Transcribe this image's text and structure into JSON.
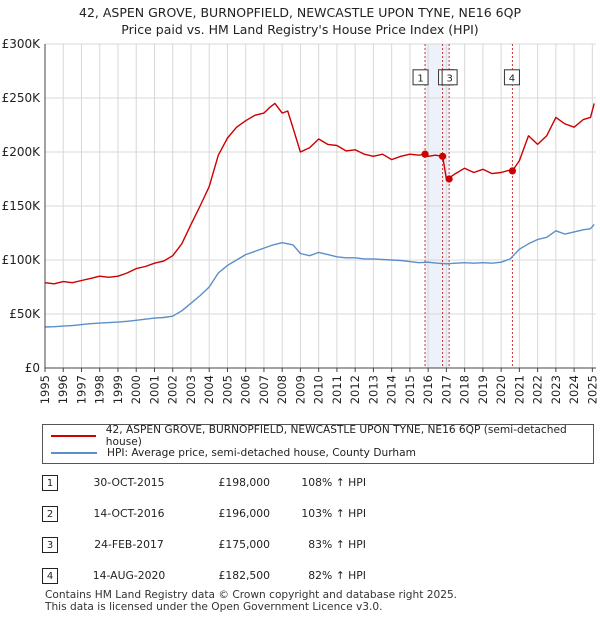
{
  "header": {
    "title_line1": "42, ASPEN GROVE, BURNOPFIELD, NEWCASTLE UPON TYNE, NE16 6QP",
    "title_line2": "Price paid vs. HM Land Registry's House Price Index (HPI)"
  },
  "colors": {
    "property": "#cc0000",
    "hpi": "#5b8fc9",
    "marker_line": "#cc0000",
    "shade": "#dde6f5"
  },
  "chart_data": {
    "type": "line",
    "xlim": [
      1995.0,
      2025.2
    ],
    "ylim": [
      0,
      300000
    ],
    "x_ticks": [
      "1995",
      "1996",
      "1997",
      "1998",
      "1999",
      "2000",
      "2001",
      "2002",
      "2003",
      "2004",
      "2005",
      "2006",
      "2007",
      "2008",
      "2009",
      "2010",
      "2011",
      "2012",
      "2013",
      "2014",
      "2015",
      "2016",
      "2017",
      "2018",
      "2019",
      "2020",
      "2021",
      "2022",
      "2023",
      "2024",
      "2025"
    ],
    "y_ticks": [
      {
        "value": 0,
        "label": "£0"
      },
      {
        "value": 50000,
        "label": "£50K"
      },
      {
        "value": 100000,
        "label": "£100K"
      },
      {
        "value": 150000,
        "label": "£150K"
      },
      {
        "value": 200000,
        "label": "£200K"
      },
      {
        "value": 250000,
        "label": "£250K"
      },
      {
        "value": 300000,
        "label": "£300K"
      }
    ],
    "series": [
      {
        "name": "42, ASPEN GROVE, BURNOPFIELD, NEWCASTLE UPON TYNE, NE16 6QP (semi-detached house)",
        "color": "#cc0000",
        "x": [
          1995.0,
          1995.5,
          1996.0,
          1996.5,
          1997.0,
          1997.5,
          1998.0,
          1998.5,
          1999.0,
          1999.5,
          2000.0,
          2000.5,
          2001.0,
          2001.5,
          2002.0,
          2002.5,
          2003.0,
          2003.5,
          2004.0,
          2004.5,
          2005.0,
          2005.5,
          2006.0,
          2006.5,
          2007.0,
          2007.3,
          2007.6,
          2008.0,
          2008.3,
          2008.6,
          2009.0,
          2009.5,
          2010.0,
          2010.5,
          2011.0,
          2011.5,
          2012.0,
          2012.5,
          2013.0,
          2013.5,
          2014.0,
          2014.5,
          2015.0,
          2015.5,
          2015.83,
          2016.0,
          2016.4,
          2016.79,
          2017.0,
          2017.15,
          2017.5,
          2018.0,
          2018.5,
          2019.0,
          2019.5,
          2020.0,
          2020.4,
          2020.62,
          2021.0,
          2021.5,
          2022.0,
          2022.5,
          2023.0,
          2023.5,
          2024.0,
          2024.5,
          2024.9,
          2025.1
        ],
        "y": [
          79000,
          78000,
          80000,
          79000,
          81000,
          83000,
          85000,
          84000,
          85000,
          88000,
          92000,
          94000,
          97000,
          99000,
          104000,
          115000,
          133000,
          150000,
          168000,
          197000,
          213000,
          223000,
          229000,
          234000,
          236000,
          241000,
          245000,
          236000,
          238000,
          222000,
          200000,
          204000,
          212000,
          207000,
          206000,
          201000,
          202000,
          198000,
          196000,
          198000,
          193000,
          196000,
          198000,
          197000,
          198000,
          196000,
          197000,
          196000,
          175000,
          176000,
          180000,
          185000,
          181000,
          184000,
          180000,
          181000,
          183000,
          182500,
          192000,
          215000,
          207000,
          215000,
          232000,
          226000,
          223000,
          230000,
          232000,
          245000
        ]
      },
      {
        "name": "HPI: Average price, semi-detached house, County Durham",
        "color": "#5b8fc9",
        "x": [
          1995.0,
          1995.5,
          1996.0,
          1996.5,
          1997.0,
          1997.5,
          1998.0,
          1998.5,
          1999.0,
          1999.5,
          2000.0,
          2000.5,
          2001.0,
          2001.5,
          2002.0,
          2002.5,
          2003.0,
          2003.5,
          2004.0,
          2004.5,
          2005.0,
          2005.5,
          2006.0,
          2006.5,
          2007.0,
          2007.5,
          2008.0,
          2008.3,
          2008.6,
          2009.0,
          2009.5,
          2010.0,
          2010.5,
          2011.0,
          2011.5,
          2012.0,
          2012.5,
          2013.0,
          2013.5,
          2014.0,
          2014.5,
          2015.0,
          2015.5,
          2016.0,
          2016.5,
          2017.0,
          2017.5,
          2018.0,
          2018.5,
          2019.0,
          2019.5,
          2020.0,
          2020.5,
          2021.0,
          2021.5,
          2022.0,
          2022.5,
          2023.0,
          2023.5,
          2024.0,
          2024.5,
          2024.9,
          2025.1
        ],
        "y": [
          38000,
          38200,
          38800,
          39300,
          40200,
          41000,
          41600,
          42000,
          42500,
          43200,
          44200,
          45200,
          46200,
          46800,
          48000,
          53000,
          60000,
          67000,
          75000,
          88000,
          95000,
          100000,
          105000,
          108000,
          111000,
          114000,
          116000,
          115000,
          114000,
          106000,
          104000,
          107000,
          105000,
          103000,
          102000,
          102000,
          101000,
          101000,
          100500,
          100000,
          99500,
          98500,
          97500,
          98000,
          97000,
          96500,
          97000,
          97500,
          97000,
          97500,
          97000,
          98000,
          101000,
          110000,
          115000,
          119000,
          121000,
          127000,
          124000,
          126000,
          128000,
          129000,
          133000
        ]
      }
    ],
    "annotations": [
      {
        "label": "1",
        "x": 2015.83,
        "y": 198000
      },
      {
        "label": "2",
        "x": 2016.79,
        "y": 196000
      },
      {
        "label": "3",
        "x": 2017.15,
        "y": 175000
      },
      {
        "label": "4",
        "x": 2020.62,
        "y": 182500
      }
    ],
    "shaded_regions": [
      {
        "x_start": 2015.83,
        "x_end": 2017.15
      },
      {
        "x_start": 2020.62,
        "x_end": 2020.62
      }
    ]
  },
  "legend": {
    "property_label": "42, ASPEN GROVE, BURNOPFIELD, NEWCASTLE UPON TYNE, NE16 6QP (semi-detached house)",
    "hpi_label": "HPI: Average price, semi-detached house, County Durham"
  },
  "sales": [
    {
      "num": "1",
      "date": "30-OCT-2015",
      "price": "£198,000",
      "hpi": "108% ↑ HPI"
    },
    {
      "num": "2",
      "date": "14-OCT-2016",
      "price": "£196,000",
      "hpi": "103% ↑ HPI"
    },
    {
      "num": "3",
      "date": "24-FEB-2017",
      "price": "£175,000",
      "hpi": "83% ↑ HPI"
    },
    {
      "num": "4",
      "date": "14-AUG-2020",
      "price": "£182,500",
      "hpi": "82% ↑ HPI"
    }
  ],
  "footer": {
    "line1": "Contains HM Land Registry data © Crown copyright and database right 2025.",
    "line2": "This data is licensed under the Open Government Licence v3.0."
  }
}
